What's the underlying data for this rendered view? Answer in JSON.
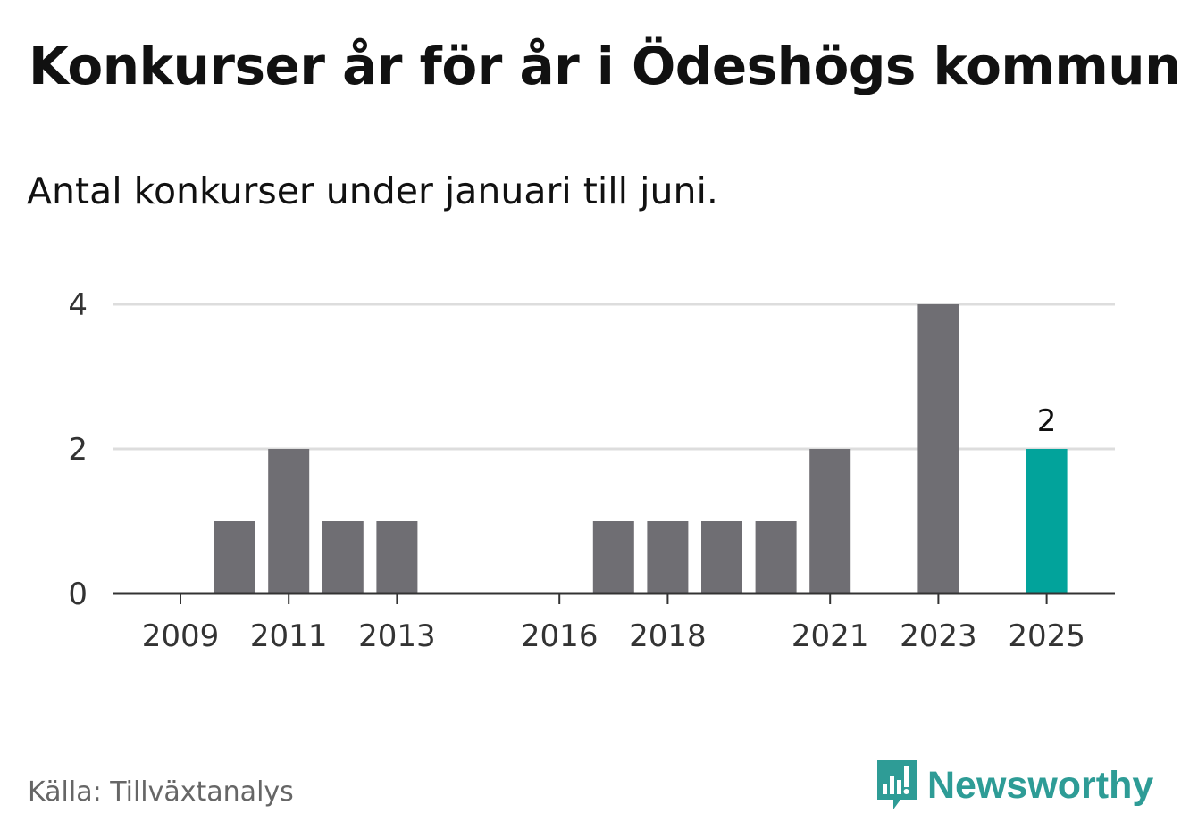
{
  "header": {
    "title": "Konkurser år för år i Ödeshögs kommun",
    "subtitle": "Antal konkurser under januari till juni."
  },
  "footer": {
    "source": "Källa: Tillväxtanalys",
    "brand": "Newsworthy",
    "brand_icon": "bar-chart-speech-bubble-icon"
  },
  "colors": {
    "bar": "#6f6e73",
    "highlight": "#02a39b",
    "grid": "#dddddd",
    "axis": "#333333",
    "brand": "#2e9c96"
  },
  "chart_data": {
    "type": "bar",
    "categories": [
      "2009",
      "2010",
      "2011",
      "2012",
      "2013",
      "2014",
      "2015",
      "2016",
      "2017",
      "2018",
      "2019",
      "2020",
      "2021",
      "2022",
      "2023",
      "2024",
      "2025"
    ],
    "values": [
      0,
      1,
      2,
      1,
      1,
      0,
      0,
      0,
      1,
      1,
      1,
      1,
      2,
      0,
      4,
      0,
      2
    ],
    "highlight_index": 16,
    "data_labels": [
      {
        "category": "2025",
        "text": "2"
      }
    ],
    "x_tick_labels": [
      "2009",
      "2011",
      "2013",
      "2016",
      "2018",
      "2021",
      "2023",
      "2025"
    ],
    "y_ticks": [
      0,
      2,
      4
    ],
    "ylim": [
      0,
      4
    ],
    "grid": true,
    "xlabel": "",
    "ylabel": ""
  }
}
